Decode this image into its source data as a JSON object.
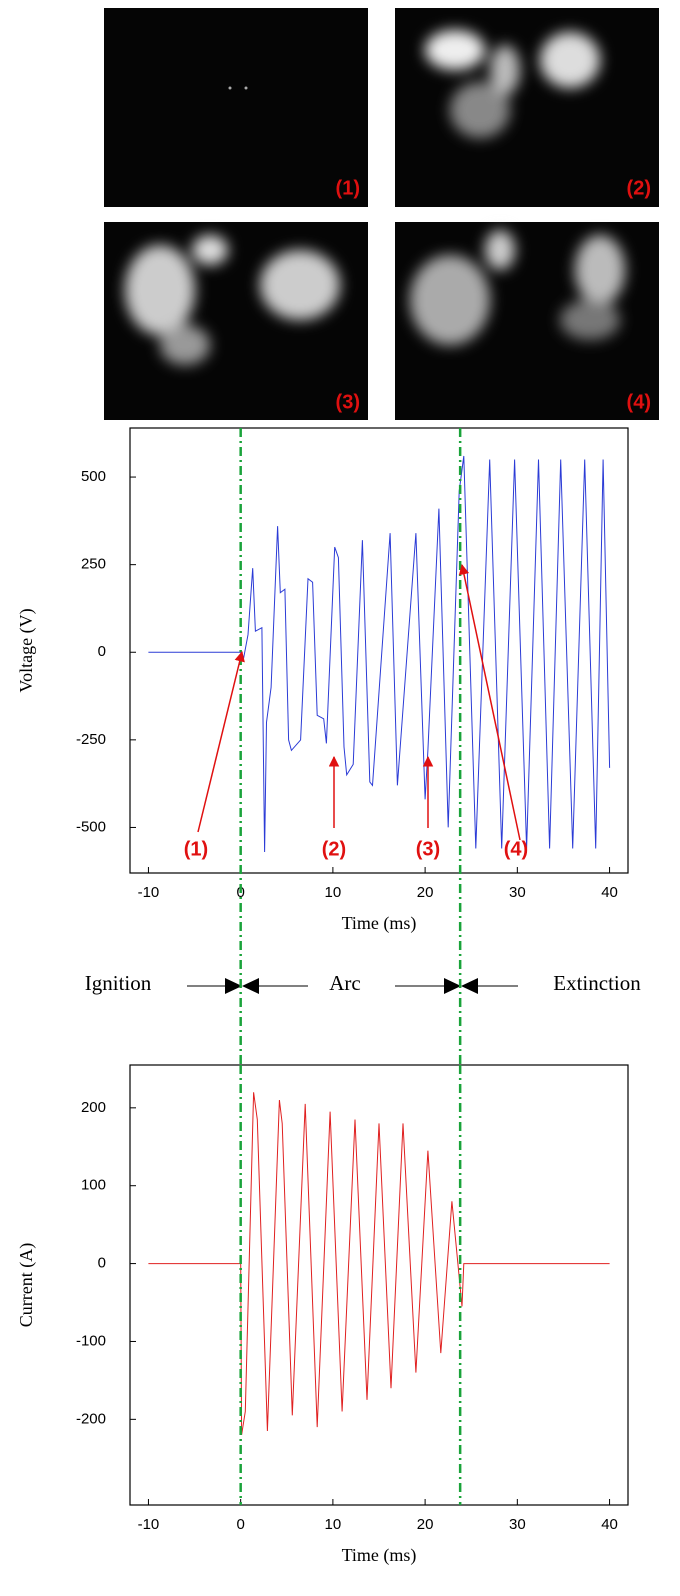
{
  "panels": [
    "(1)",
    "(2)",
    "(3)",
    "(4)"
  ],
  "phases": [
    "Ignition",
    "Arc",
    "Extinction"
  ],
  "chart_data": [
    {
      "type": "line",
      "xlabel": "Time (ms)",
      "ylabel": "Voltage (V)",
      "xlim": [
        -12,
        42
      ],
      "ylim": [
        -630,
        640
      ],
      "xticks": [
        -10,
        0,
        10,
        20,
        30,
        40
      ],
      "yticks": [
        -500,
        -250,
        0,
        250,
        500
      ],
      "vlines": [
        0,
        23.8
      ],
      "annotations": [
        "(1)",
        "(2)",
        "(3)",
        "(4)"
      ],
      "x": [
        -10,
        0,
        0.3,
        0.8,
        1.3,
        1.6,
        2.3,
        2.6,
        2.8,
        3.3,
        4.0,
        4.3,
        4.8,
        5.2,
        5.5,
        6.5,
        7.3,
        7.8,
        8.3,
        9.0,
        9.3,
        10.2,
        10.6,
        11.2,
        11.5,
        12.2,
        13.2,
        14.0,
        14.3,
        16.2,
        17.0,
        19.0,
        20.0,
        20.3,
        21.5,
        22.5,
        23.7,
        24.2,
        25.5,
        27.0,
        28.3,
        29.7,
        31.0,
        32.3,
        33.5,
        34.7,
        36.0,
        37.3,
        38.5,
        39.3,
        40
      ],
      "series": [
        {
          "color": "#2b3bd6",
          "values": [
            0,
            0,
            -20,
            50,
            240,
            60,
            70,
            -570,
            -200,
            -100,
            360,
            170,
            180,
            -250,
            -280,
            -250,
            210,
            200,
            -180,
            -190,
            -260,
            300,
            270,
            -270,
            -350,
            -320,
            320,
            -370,
            -380,
            340,
            -380,
            340,
            -420,
            -280,
            410,
            -500,
            460,
            560,
            -560,
            550,
            -560,
            550,
            -560,
            550,
            -560,
            550,
            -560,
            550,
            -560,
            550,
            -330
          ]
        }
      ]
    },
    {
      "type": "line",
      "xlabel": "Time (ms)",
      "ylabel": "Current (A)",
      "xlim": [
        -12,
        42
      ],
      "ylim": [
        -310,
        255
      ],
      "xticks": [
        -10,
        0,
        10,
        20,
        30,
        40
      ],
      "yticks": [
        -200,
        -100,
        0,
        100,
        200
      ],
      "vlines": [
        0,
        23.8
      ],
      "x": [
        -10,
        0,
        0.1,
        0.5,
        1.4,
        1.8,
        2.9,
        4.2,
        4.5,
        5.6,
        7.0,
        8.3,
        9.7,
        11.0,
        12.4,
        13.7,
        15.0,
        16.3,
        17.6,
        19.0,
        20.3,
        21.7,
        22.9,
        24.0,
        24.2,
        40
      ],
      "series": [
        {
          "color": "#e02020",
          "values": [
            0,
            0,
            -220,
            -190,
            220,
            185,
            -215,
            210,
            180,
            -195,
            205,
            -210,
            195,
            -190,
            185,
            -175,
            180,
            -160,
            180,
            -140,
            145,
            -115,
            80,
            -55,
            0,
            0
          ]
        }
      ]
    }
  ]
}
